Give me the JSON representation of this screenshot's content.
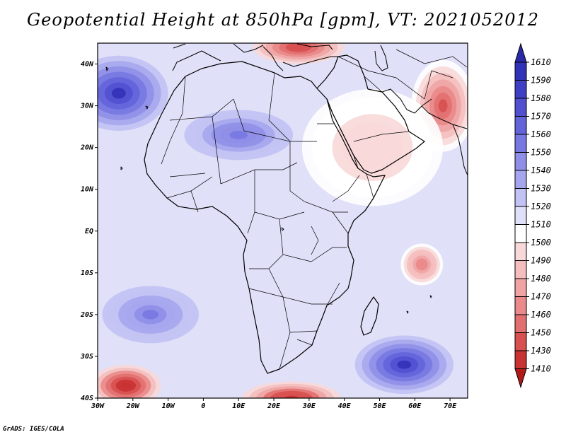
{
  "title": "Geopotential Height at 850hPa [gpm], VT: 2021052012",
  "credit": "GrADS: IGES/COLA",
  "map": {
    "variable": "Geopotential Height at 850hPa",
    "units": "gpm",
    "valid_time": "2021052012",
    "lon_range": [
      -30,
      75
    ],
    "lat_range": [
      -40,
      45
    ],
    "lat_ticks": [
      {
        "value": 40,
        "label": "40N"
      },
      {
        "value": 30,
        "label": "30N"
      },
      {
        "value": 20,
        "label": "20N"
      },
      {
        "value": 10,
        "label": "10N"
      },
      {
        "value": 0,
        "label": "EQ"
      },
      {
        "value": -10,
        "label": "10S"
      },
      {
        "value": -20,
        "label": "20S"
      },
      {
        "value": -30,
        "label": "30S"
      },
      {
        "value": -40,
        "label": "40S"
      }
    ],
    "lon_ticks": [
      {
        "value": -30,
        "label": "30W"
      },
      {
        "value": -20,
        "label": "20W"
      },
      {
        "value": -10,
        "label": "10W"
      },
      {
        "value": 0,
        "label": "0"
      },
      {
        "value": 10,
        "label": "10E"
      },
      {
        "value": 20,
        "label": "20E"
      },
      {
        "value": 30,
        "label": "30E"
      },
      {
        "value": 40,
        "label": "40E"
      },
      {
        "value": 50,
        "label": "50E"
      },
      {
        "value": 60,
        "label": "60E"
      },
      {
        "value": 70,
        "label": "70E"
      }
    ],
    "features": [
      {
        "name": "ridge-north-atlantic",
        "lon": -24,
        "lat": 33,
        "rlon": 14,
        "rlat": 9,
        "value": 1590
      },
      {
        "name": "ridge-south-atlantic",
        "lon": -15,
        "lat": -20,
        "rlon": 16,
        "rlat": 8,
        "value": 1550
      },
      {
        "name": "ridge-sw-indian-ocean",
        "lon": 57,
        "lat": -32,
        "rlon": 14,
        "rlat": 7,
        "value": 1590
      },
      {
        "name": "high-sahara",
        "lon": 10,
        "lat": 23,
        "rlon": 18,
        "rlat": 7,
        "value": 1555
      },
      {
        "name": "low-mediterranean",
        "lon": 27,
        "lat": 44,
        "rlon": 13,
        "rlat": 4,
        "value": 1430
      },
      {
        "name": "low-iran",
        "lon": 68,
        "lat": 30,
        "rlon": 9,
        "rlat": 11,
        "value": 1440
      },
      {
        "name": "low-arabia",
        "lon": 48,
        "lat": 20,
        "rlon": 20,
        "rlat": 14,
        "value": 1490
      },
      {
        "name": "low-indian-ocean",
        "lon": 62,
        "lat": -8,
        "rlon": 6,
        "rlat": 5,
        "value": 1460
      },
      {
        "name": "low-southern-ocean-west",
        "lon": -22,
        "lat": -37,
        "rlon": 10,
        "rlat": 5,
        "value": 1410
      },
      {
        "name": "low-southern-ocean-central",
        "lon": 25,
        "lat": -40,
        "rlon": 14,
        "rlat": 4,
        "value": 1420
      }
    ]
  },
  "colorbar": {
    "levels": [
      "1610",
      "1590",
      "1580",
      "1570",
      "1560",
      "1550",
      "1540",
      "1530",
      "1520",
      "1510",
      "1500",
      "1490",
      "1480",
      "1470",
      "1460",
      "1450",
      "1430",
      "1410"
    ],
    "colors": [
      "#2a2aa8",
      "#3232b8",
      "#3f3fc6",
      "#5050d0",
      "#6464da",
      "#7878e2",
      "#8f8fe8",
      "#a6a6ee",
      "#c2c2f4",
      "#e0e0f8",
      "#ffffff",
      "#f8d8d8",
      "#f4bebe",
      "#f0a4a4",
      "#ea8a8a",
      "#e27070",
      "#d85050",
      "#c83232",
      "#b21a1a"
    ]
  }
}
